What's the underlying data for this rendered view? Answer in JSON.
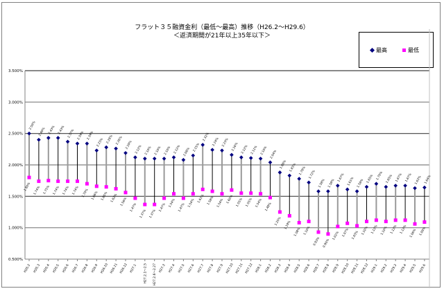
{
  "chart_data": {
    "type": "line",
    "title": "フラット３５融資金利（最低～最高）推移（H26.2～H29.6）",
    "subtitle": "＜返済期間が21年以上35年以下＞",
    "xlabel": "",
    "ylabel": "",
    "ylim": [
      0.5,
      3.5
    ],
    "yticks": [
      "0.500%",
      "1.000%",
      "1.500%",
      "2.000%",
      "2.500%",
      "3.000%",
      "3.500%"
    ],
    "grid": true,
    "legend_position": "top-right",
    "categories": [
      "H26.2",
      "H26.3",
      "H26.4",
      "H26.5",
      "H26.6",
      "H26.7",
      "H26.8",
      "H26.9",
      "H26.10",
      "H26.11",
      "H26.12",
      "H27.1",
      "H27.2.1～2.5",
      "H27.2.6～2.27",
      "H27.3",
      "H27.4",
      "H27.5",
      "H27.6",
      "H27.7",
      "H27.8",
      "H27.9",
      "H27.10",
      "H27.11",
      "H27.12",
      "H28.1",
      "H28.2",
      "H28.3",
      "H28.4",
      "H28.5",
      "H28.6",
      "H28.7",
      "H28.8",
      "H28.9",
      "H28.10",
      "H28.11",
      "H28.12",
      "H29.1",
      "H29.2",
      "H29.3",
      "H29.4",
      "H29.5",
      "H29.6"
    ],
    "series": [
      {
        "name": "最高",
        "color": "#000080",
        "marker": "diamond",
        "values": [
          2.5,
          2.4,
          2.43,
          2.43,
          2.37,
          2.34,
          2.34,
          2.23,
          2.28,
          2.26,
          2.19,
          2.12,
          2.1,
          2.1,
          2.1,
          2.12,
          2.08,
          2.15,
          2.32,
          2.24,
          2.23,
          2.16,
          2.12,
          2.11,
          2.1,
          2.04,
          1.88,
          1.83,
          1.78,
          1.72,
          1.58,
          1.58,
          1.67,
          1.61,
          1.58,
          1.65,
          1.7,
          1.65,
          1.67,
          1.67,
          1.63,
          1.64
        ]
      },
      {
        "name": "最低",
        "color": "#ff00ff",
        "marker": "square",
        "values": [
          1.8,
          1.74,
          1.75,
          1.74,
          1.74,
          1.74,
          1.7,
          1.66,
          1.65,
          1.62,
          1.56,
          1.47,
          1.37,
          1.37,
          1.47,
          1.54,
          1.47,
          1.54,
          1.61,
          1.58,
          1.54,
          1.6,
          1.55,
          1.55,
          1.54,
          1.48,
          1.25,
          1.19,
          1.08,
          1.1,
          0.93,
          0.9,
          1.02,
          1.07,
          1.03,
          1.1,
          1.12,
          1.1,
          1.12,
          1.12,
          1.06,
          1.09
        ]
      }
    ]
  }
}
